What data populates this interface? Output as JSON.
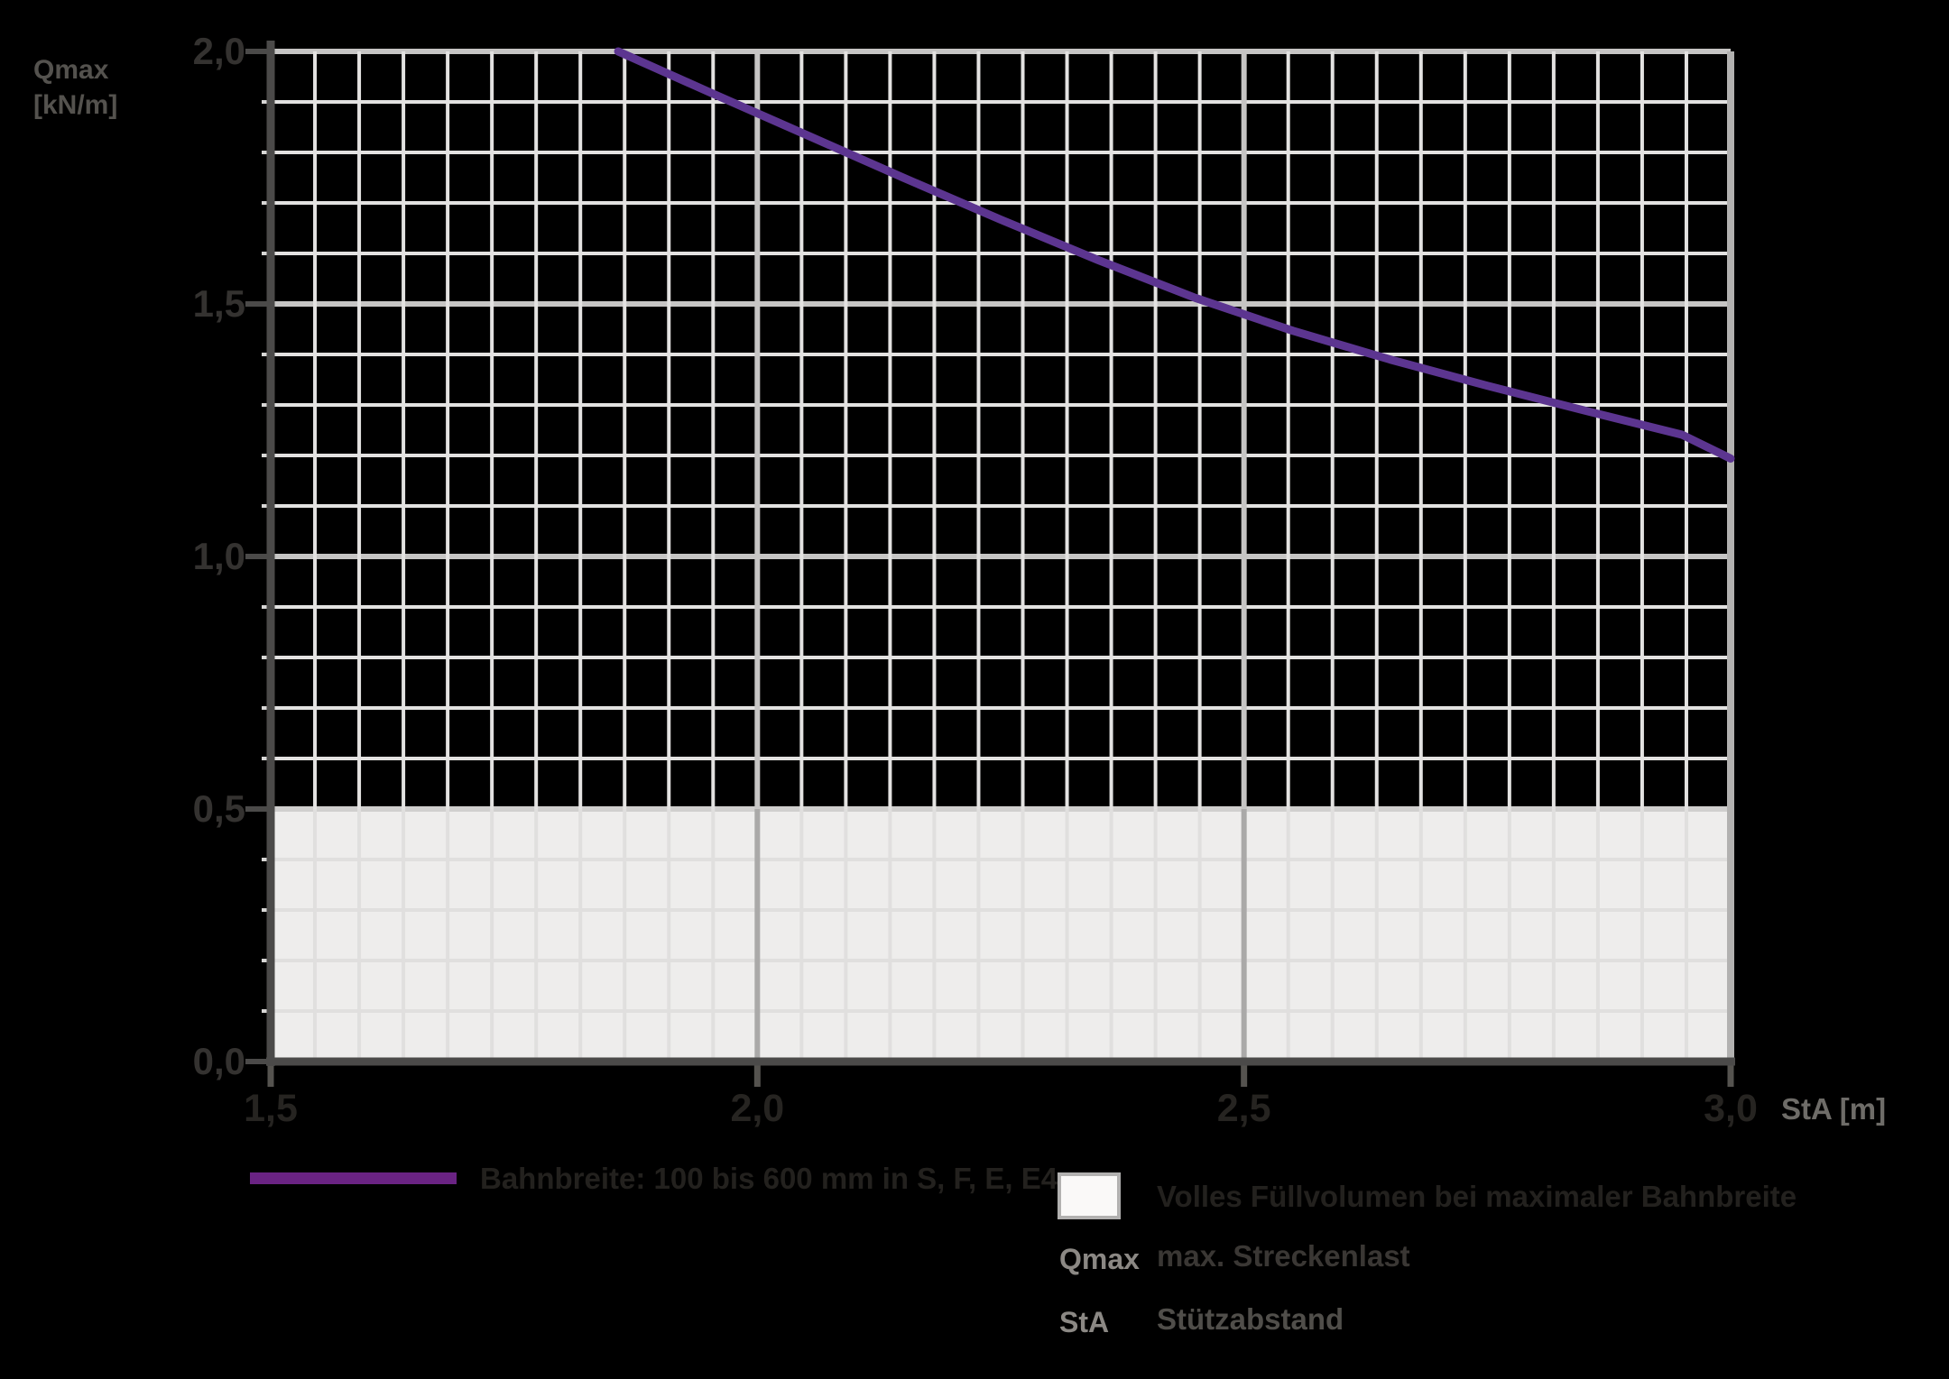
{
  "chart_data": {
    "type": "line",
    "title": "",
    "xlabel": "StA [m]",
    "ylabel": "Qmax [kN/m]",
    "xlim": [
      1.5,
      3.0
    ],
    "ylim": [
      0.0,
      2.0
    ],
    "x_tick_values": [
      1.5,
      2.0,
      2.5,
      3.0
    ],
    "x_tick_labels": [
      "1,5",
      "2,0",
      "2,5",
      "3,0"
    ],
    "y_tick_values": [
      0.0,
      0.5,
      1.0,
      1.5,
      2.0
    ],
    "y_tick_labels": [
      "0,0",
      "0,5",
      "1,0",
      "1,5",
      "2,0"
    ],
    "grid": {
      "on": true,
      "x_minor_divisions": 33,
      "x_major_every": 11,
      "y_minor_divisions": 20,
      "y_major_every": 5
    },
    "series": [
      {
        "name": "Bahnbreite: 100 bis 600 mm in S, F, E, E4",
        "color": "#5c3590",
        "points": [
          [
            1.857,
            2.0
          ],
          [
            1.95,
            1.92
          ],
          [
            2.05,
            1.835
          ],
          [
            2.15,
            1.75
          ],
          [
            2.25,
            1.667
          ],
          [
            2.35,
            1.587
          ],
          [
            2.45,
            1.512
          ],
          [
            2.55,
            1.447
          ],
          [
            2.65,
            1.39
          ],
          [
            2.75,
            1.338
          ],
          [
            2.85,
            1.289
          ],
          [
            2.95,
            1.241
          ],
          [
            3.0,
            1.194
          ]
        ]
      }
    ],
    "shaded_region": {
      "label": "Volles Füllvolumen bei maximaler Bahnbreite",
      "from_y": 0.0,
      "to_y": 0.5,
      "fill": "#eeedec"
    },
    "style": {
      "background": "#000000",
      "grid_minor": "#e3e2e1",
      "grid_major": "#c6c5c4",
      "grid_minor_in_fill": "#e0dfde",
      "grid_major_in_fill": "#aaa9a8",
      "fill_boundary_line": "#d0cfce",
      "right_border": "#b2b1b0",
      "axis": "#4b4a49",
      "tick_major": "#4b4a49",
      "tick_minor": "#d8d7d6",
      "x_tick": "#55534f"
    }
  },
  "axis_labels": {
    "y_name": "Qmax",
    "y_unit": "[kN/m]",
    "x_name": "StA [m]"
  },
  "legend": {
    "line_item": {
      "label": "Bahnbreite: 100 bis 600 mm in S, F, E, E4",
      "swatch_color": "#6a2383"
    },
    "area_item": {
      "label": "Volles Füllvolumen bei maximaler Bahnbreite",
      "swatch_fill": "#faf9f8",
      "swatch_border": "#b2b1b0"
    },
    "definitions": [
      {
        "key": "Qmax",
        "value": "max. Streckenlast"
      },
      {
        "key": "StA",
        "value": "Stützabstand"
      }
    ]
  }
}
